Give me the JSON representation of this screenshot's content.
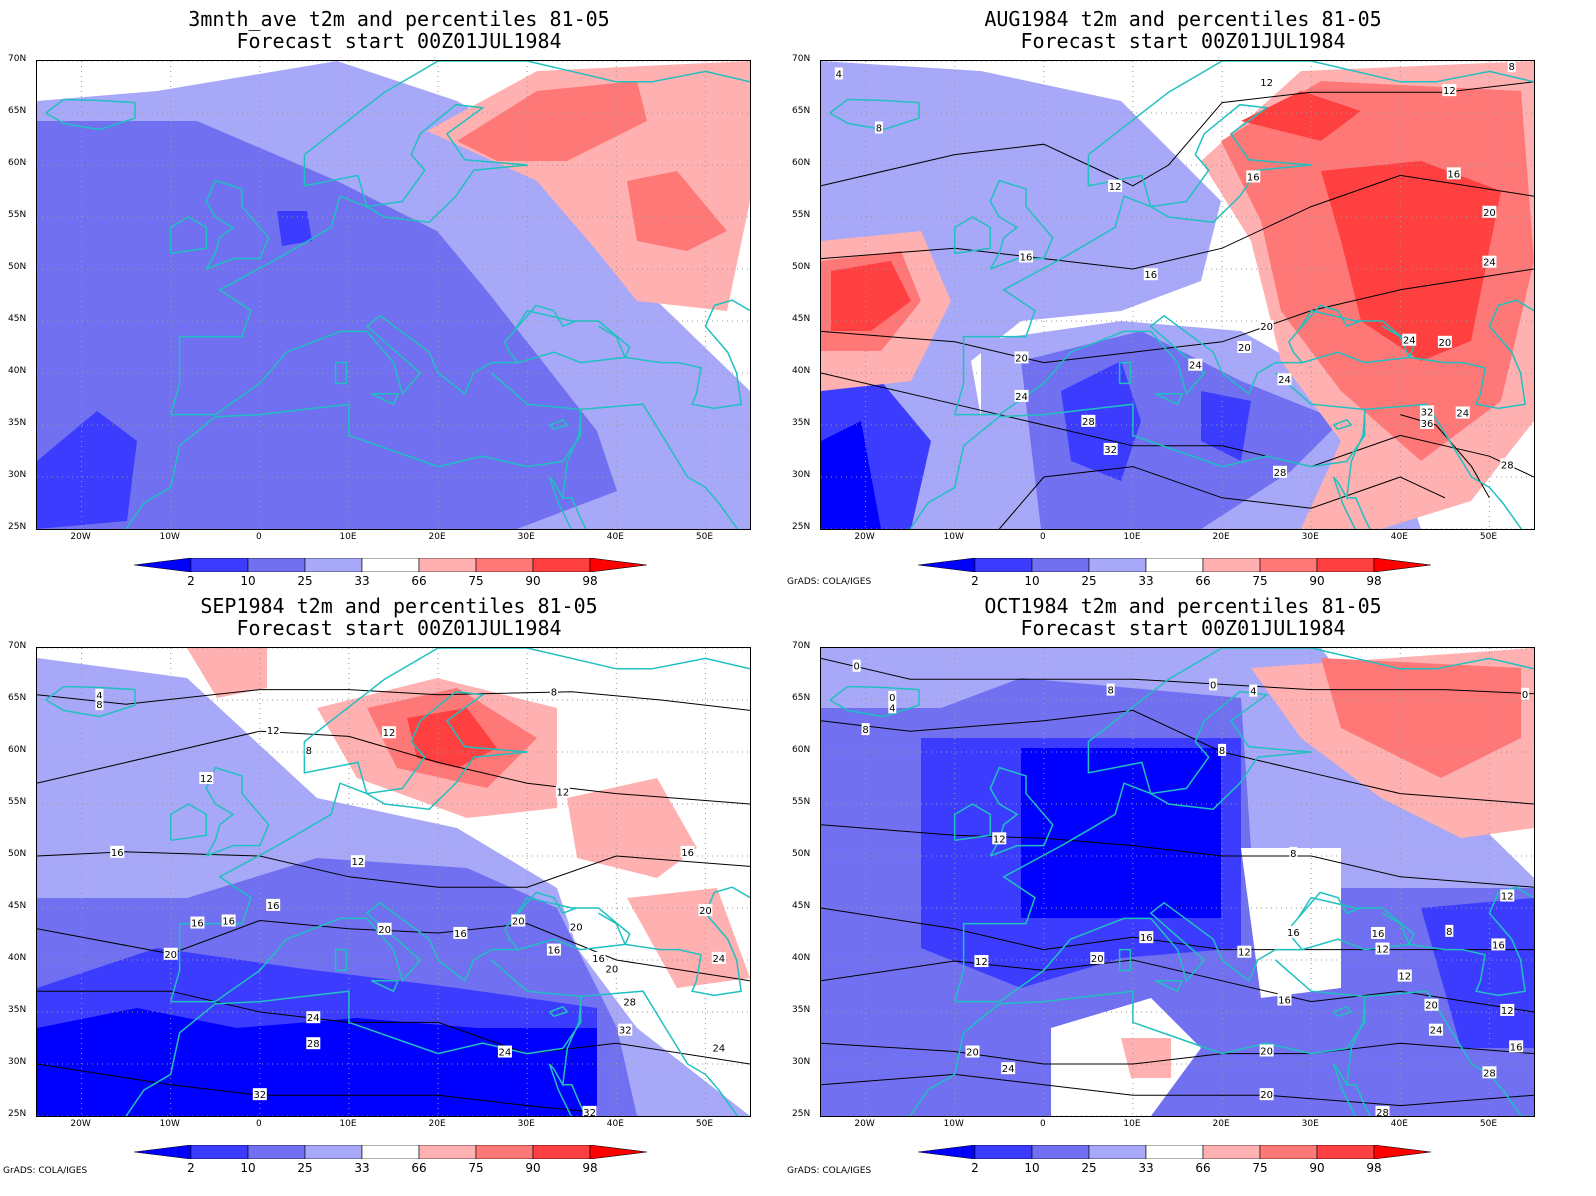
{
  "panels": [
    {
      "title1": "3mnth_ave t2m and percentiles 81-05",
      "title2": "Forecast start 00Z01JUL1984",
      "credit": "",
      "contour_labels": []
    },
    {
      "title1": "AUG1984 t2m and percentiles 81-05",
      "title2": "Forecast start 00Z01JUL1984",
      "credit": "GrADS: COLA/IGES",
      "contour_labels": [
        {
          "v": "4",
          "lon": -23,
          "lat": 68.8
        },
        {
          "v": "8",
          "lon": -18.5,
          "lat": 63.6
        },
        {
          "v": "12",
          "lon": 8,
          "lat": 58
        },
        {
          "v": "12",
          "lon": 25,
          "lat": 68
        },
        {
          "v": "12",
          "lon": 45.5,
          "lat": 67.2
        },
        {
          "v": "8",
          "lon": 52.5,
          "lat": 69.5
        },
        {
          "v": "16",
          "lon": 23.5,
          "lat": 58.9
        },
        {
          "v": "16",
          "lon": 46,
          "lat": 59.2
        },
        {
          "v": "16",
          "lon": -2,
          "lat": 51.2
        },
        {
          "v": "16",
          "lon": 12,
          "lat": 49.5
        },
        {
          "v": "20",
          "lon": 50,
          "lat": 55.5
        },
        {
          "v": "24",
          "lon": 50,
          "lat": 50.7
        },
        {
          "v": "20",
          "lon": 25,
          "lat": 44.5
        },
        {
          "v": "20",
          "lon": 22.5,
          "lat": 42.5
        },
        {
          "v": "20",
          "lon": -2.5,
          "lat": 41.5
        },
        {
          "v": "24",
          "lon": 17,
          "lat": 40.8
        },
        {
          "v": "24",
          "lon": 41,
          "lat": 43.2
        },
        {
          "v": "20",
          "lon": 45,
          "lat": 43
        },
        {
          "v": "24",
          "lon": 27,
          "lat": 39.4
        },
        {
          "v": "24",
          "lon": -2.5,
          "lat": 37.8
        },
        {
          "v": "28",
          "lon": 5,
          "lat": 35.4
        },
        {
          "v": "32",
          "lon": 43,
          "lat": 36.3
        },
        {
          "v": "36",
          "lon": 43,
          "lat": 35.2
        },
        {
          "v": "24",
          "lon": 47,
          "lat": 36.2
        },
        {
          "v": "32",
          "lon": 7.5,
          "lat": 32.7
        },
        {
          "v": "28",
          "lon": 26.5,
          "lat": 30.5
        },
        {
          "v": "28",
          "lon": 52,
          "lat": 31.2
        }
      ]
    },
    {
      "title1": "SEP1984 t2m and percentiles 81-05",
      "title2": "Forecast start 00Z01JUL1984",
      "credit": "GrADS: COLA/IGES",
      "contour_labels": [
        {
          "v": "4",
          "lon": -18,
          "lat": 65.5
        },
        {
          "v": "8",
          "lon": -18,
          "lat": 64.6
        },
        {
          "v": "12",
          "lon": 1.5,
          "lat": 62.1
        },
        {
          "v": "8",
          "lon": 5.5,
          "lat": 60.2
        },
        {
          "v": "12",
          "lon": 14.5,
          "lat": 61.9
        },
        {
          "v": "8",
          "lon": 33,
          "lat": 65.8
        },
        {
          "v": "12",
          "lon": -6,
          "lat": 57.5
        },
        {
          "v": "12",
          "lon": 34,
          "lat": 56.2
        },
        {
          "v": "16",
          "lon": -16,
          "lat": 50.4
        },
        {
          "v": "12",
          "lon": 11,
          "lat": 49.5
        },
        {
          "v": "16",
          "lon": 48,
          "lat": 50.4
        },
        {
          "v": "16",
          "lon": 1.5,
          "lat": 45.3
        },
        {
          "v": "16",
          "lon": -7,
          "lat": 43.6
        },
        {
          "v": "16",
          "lon": -3.5,
          "lat": 43.8
        },
        {
          "v": "20",
          "lon": 14,
          "lat": 43
        },
        {
          "v": "16",
          "lon": 22.5,
          "lat": 42.6
        },
        {
          "v": "20",
          "lon": 29,
          "lat": 43.8
        },
        {
          "v": "20",
          "lon": 35.5,
          "lat": 43.2
        },
        {
          "v": "20",
          "lon": 50,
          "lat": 44.8
        },
        {
          "v": "16",
          "lon": 33,
          "lat": 41
        },
        {
          "v": "16",
          "lon": 38,
          "lat": 40.2
        },
        {
          "v": "20",
          "lon": 39.5,
          "lat": 39.2
        },
        {
          "v": "24",
          "lon": 51.5,
          "lat": 40.2
        },
        {
          "v": "20",
          "lon": -10,
          "lat": 40.6
        },
        {
          "v": "28",
          "lon": 41.5,
          "lat": 36
        },
        {
          "v": "24",
          "lon": 6,
          "lat": 34.5
        },
        {
          "v": "32",
          "lon": 41,
          "lat": 33.3
        },
        {
          "v": "28",
          "lon": 6,
          "lat": 32
        },
        {
          "v": "24",
          "lon": 27.5,
          "lat": 31.2
        },
        {
          "v": "24",
          "lon": 51.5,
          "lat": 31.6
        },
        {
          "v": "32",
          "lon": 0,
          "lat": 27.1
        },
        {
          "v": "32",
          "lon": 37,
          "lat": 25.4
        }
      ]
    },
    {
      "title1": "OCT1984 t2m and percentiles 81-05",
      "title2": "Forecast start 00Z01JUL1984",
      "credit": "GrADS: COLA/IGES",
      "contour_labels": [
        {
          "v": "0",
          "lon": -21,
          "lat": 68.3
        },
        {
          "v": "0",
          "lon": -17,
          "lat": 65.3
        },
        {
          "v": "4",
          "lon": -17,
          "lat": 64.3
        },
        {
          "v": "8",
          "lon": -20,
          "lat": 62.2
        },
        {
          "v": "8",
          "lon": 7.5,
          "lat": 66
        },
        {
          "v": "0",
          "lon": 19,
          "lat": 66.5
        },
        {
          "v": "4",
          "lon": 23.5,
          "lat": 65.9
        },
        {
          "v": "0",
          "lon": 54,
          "lat": 65.6
        },
        {
          "v": "8",
          "lon": 20,
          "lat": 60.2
        },
        {
          "v": "12",
          "lon": -5,
          "lat": 51.7
        },
        {
          "v": "8",
          "lon": 28,
          "lat": 50.3
        },
        {
          "v": "12",
          "lon": 52,
          "lat": 46.2
        },
        {
          "v": "16",
          "lon": 28,
          "lat": 42.7
        },
        {
          "v": "16",
          "lon": 37.5,
          "lat": 42.6
        },
        {
          "v": "8",
          "lon": 45.5,
          "lat": 42.8
        },
        {
          "v": "16",
          "lon": 51,
          "lat": 41.5
        },
        {
          "v": "16",
          "lon": 11.5,
          "lat": 42.2
        },
        {
          "v": "12",
          "lon": 22.5,
          "lat": 40.8
        },
        {
          "v": "12",
          "lon": 38,
          "lat": 41.1
        },
        {
          "v": "12",
          "lon": -7,
          "lat": 39.9
        },
        {
          "v": "20",
          "lon": 6,
          "lat": 40.2
        },
        {
          "v": "12",
          "lon": 40.5,
          "lat": 38.5
        },
        {
          "v": "16",
          "lon": 27,
          "lat": 36.2
        },
        {
          "v": "20",
          "lon": 43.5,
          "lat": 35.7
        },
        {
          "v": "12",
          "lon": 52,
          "lat": 35.2
        },
        {
          "v": "24",
          "lon": 44,
          "lat": 33.3
        },
        {
          "v": "16",
          "lon": 53,
          "lat": 31.7
        },
        {
          "v": "20",
          "lon": -8,
          "lat": 31.2
        },
        {
          "v": "20",
          "lon": 25,
          "lat": 31.3
        },
        {
          "v": "24",
          "lon": -4,
          "lat": 29.6
        },
        {
          "v": "28",
          "lon": 50,
          "lat": 29.2
        },
        {
          "v": "20",
          "lon": 25,
          "lat": 27.1
        },
        {
          "v": "28",
          "lon": 38,
          "lat": 25.4
        }
      ]
    }
  ],
  "axes": {
    "lat_labels": [
      "70N",
      "65N",
      "60N",
      "55N",
      "50N",
      "45N",
      "40N",
      "35N",
      "30N",
      "25N"
    ],
    "lat_values": [
      70,
      65,
      60,
      55,
      50,
      45,
      40,
      35,
      30,
      25
    ],
    "lon_labels": [
      "20W",
      "10W",
      "0",
      "10E",
      "20E",
      "30E",
      "40E",
      "50E"
    ],
    "lon_values": [
      -20,
      -10,
      0,
      10,
      20,
      30,
      40,
      50
    ],
    "lon_range": [
      -25,
      55
    ],
    "lat_range": [
      25,
      70
    ]
  },
  "colorbar": {
    "labels": [
      "2",
      "10",
      "25",
      "33",
      "66",
      "75",
      "90",
      "98"
    ],
    "colors": [
      "#0000ff",
      "#3c3cff",
      "#7070f0",
      "#a8a8f8",
      "#ffffff",
      "#ffb0b0",
      "#ff7878",
      "#ff4040",
      "#ff0000"
    ]
  },
  "colors": {
    "coast": "#20c0c0",
    "contour": "#000000"
  }
}
